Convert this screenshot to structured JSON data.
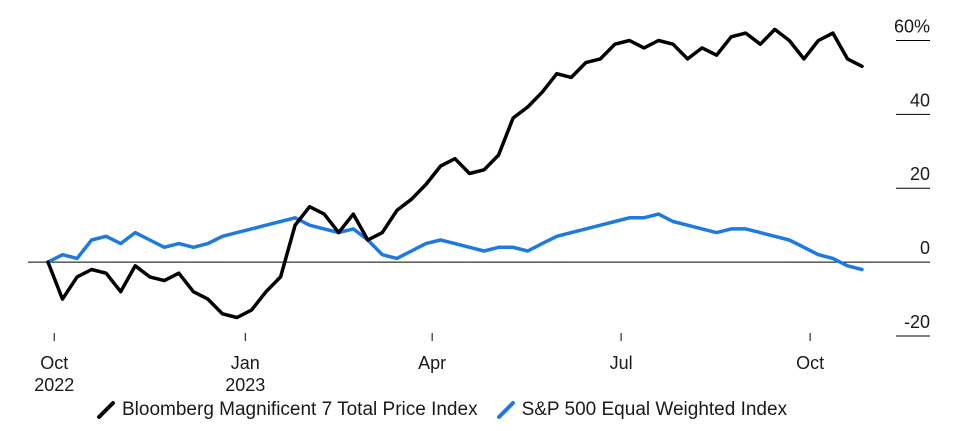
{
  "chart_data": {
    "type": "line",
    "title": "",
    "xlabel": "",
    "ylabel": "",
    "ylim": [
      -20,
      65
    ],
    "y_ticks": [
      {
        "value": 60,
        "label": "60%"
      },
      {
        "value": 40,
        "label": "40"
      },
      {
        "value": 20,
        "label": "20"
      },
      {
        "value": 0,
        "label": "0"
      },
      {
        "value": -20,
        "label": "-20"
      }
    ],
    "x_ticks": [
      {
        "date": "2022-10-03",
        "label": "Oct",
        "sublabel": "2022"
      },
      {
        "date": "2023-01-03",
        "label": "Jan",
        "sublabel": "2023"
      },
      {
        "date": "2023-04-03",
        "label": "Apr",
        "sublabel": ""
      },
      {
        "date": "2023-07-03",
        "label": "Jul",
        "sublabel": ""
      },
      {
        "date": "2023-10-02",
        "label": "Oct",
        "sublabel": ""
      }
    ],
    "xlim": [
      "2022-09-30",
      "2023-10-27"
    ],
    "grid": false,
    "legend_position": "bottom",
    "series": [
      {
        "name": "Bloomberg Magnificent 7 Total Price Index",
        "color": "#000000",
        "x": [
          "2022-09-30",
          "2022-10-07",
          "2022-10-14",
          "2022-10-21",
          "2022-10-28",
          "2022-11-04",
          "2022-11-11",
          "2022-11-18",
          "2022-11-25",
          "2022-12-02",
          "2022-12-09",
          "2022-12-16",
          "2022-12-23",
          "2022-12-30",
          "2023-01-06",
          "2023-01-13",
          "2023-01-20",
          "2023-01-27",
          "2023-02-03",
          "2023-02-10",
          "2023-02-17",
          "2023-02-24",
          "2023-03-03",
          "2023-03-10",
          "2023-03-17",
          "2023-03-24",
          "2023-03-31",
          "2023-04-07",
          "2023-04-14",
          "2023-04-21",
          "2023-04-28",
          "2023-05-05",
          "2023-05-12",
          "2023-05-19",
          "2023-05-26",
          "2023-06-02",
          "2023-06-09",
          "2023-06-16",
          "2023-06-23",
          "2023-06-30",
          "2023-07-07",
          "2023-07-14",
          "2023-07-21",
          "2023-07-28",
          "2023-08-04",
          "2023-08-11",
          "2023-08-18",
          "2023-08-25",
          "2023-09-01",
          "2023-09-08",
          "2023-09-15",
          "2023-09-22",
          "2023-09-29",
          "2023-10-06",
          "2023-10-13",
          "2023-10-20",
          "2023-10-27"
        ],
        "y": [
          0,
          -10,
          -4,
          -2,
          -3,
          -8,
          -1,
          -4,
          -5,
          -3,
          -8,
          -10,
          -14,
          -15,
          -13,
          -8,
          -4,
          10,
          15,
          13,
          8,
          13,
          6,
          8,
          14,
          17,
          21,
          26,
          28,
          24,
          25,
          29,
          39,
          42,
          46,
          51,
          50,
          54,
          55,
          59,
          60,
          58,
          60,
          59,
          55,
          58,
          56,
          61,
          62,
          59,
          63,
          60,
          55,
          60,
          62,
          55,
          53
        ]
      },
      {
        "name": "S&P 500 Equal Weighted Index",
        "color": "#1f7ae0",
        "x": [
          "2022-09-30",
          "2022-10-07",
          "2022-10-14",
          "2022-10-21",
          "2022-10-28",
          "2022-11-04",
          "2022-11-11",
          "2022-11-18",
          "2022-11-25",
          "2022-12-02",
          "2022-12-09",
          "2022-12-16",
          "2022-12-23",
          "2022-12-30",
          "2023-01-06",
          "2023-01-13",
          "2023-01-20",
          "2023-01-27",
          "2023-02-03",
          "2023-02-10",
          "2023-02-17",
          "2023-02-24",
          "2023-03-03",
          "2023-03-10",
          "2023-03-17",
          "2023-03-24",
          "2023-03-31",
          "2023-04-07",
          "2023-04-14",
          "2023-04-21",
          "2023-04-28",
          "2023-05-05",
          "2023-05-12",
          "2023-05-19",
          "2023-05-26",
          "2023-06-02",
          "2023-06-09",
          "2023-06-16",
          "2023-06-23",
          "2023-06-30",
          "2023-07-07",
          "2023-07-14",
          "2023-07-21",
          "2023-07-28",
          "2023-08-04",
          "2023-08-11",
          "2023-08-18",
          "2023-08-25",
          "2023-09-01",
          "2023-09-08",
          "2023-09-15",
          "2023-09-22",
          "2023-09-29",
          "2023-10-06",
          "2023-10-13",
          "2023-10-20",
          "2023-10-27"
        ],
        "y": [
          0,
          2,
          1,
          6,
          7,
          5,
          8,
          6,
          4,
          5,
          4,
          5,
          7,
          8,
          9,
          10,
          11,
          12,
          10,
          9,
          8,
          9,
          6,
          2,
          1,
          3,
          5,
          6,
          5,
          4,
          3,
          4,
          4,
          3,
          5,
          7,
          8,
          9,
          10,
          11,
          12,
          12,
          13,
          11,
          10,
          9,
          8,
          9,
          9,
          8,
          7,
          6,
          4,
          2,
          1,
          -1,
          -2
        ]
      }
    ]
  }
}
